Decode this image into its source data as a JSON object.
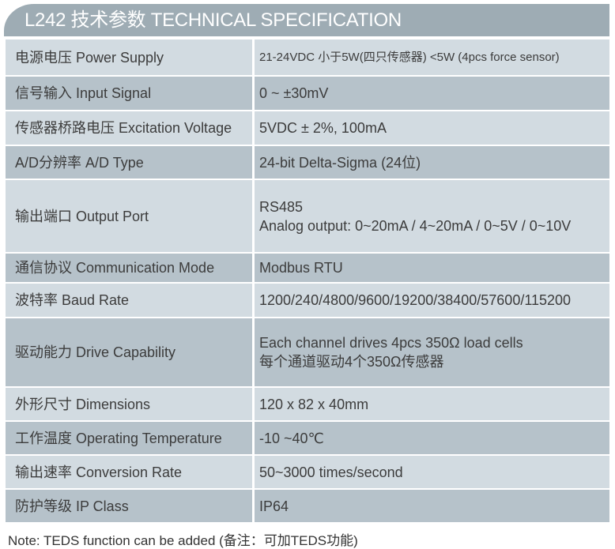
{
  "title": "L242 技术参数 TECHNICAL SPECIFICATION",
  "colors": {
    "header": "#9eacb4",
    "row_light": "#d2dbe1",
    "row_dark": "#b6c2ca"
  },
  "rows": [
    {
      "label": "电源电压 Power Supply",
      "value": [
        "21-24VDC  小于5W(四只传感器) <5W (4pcs force sensor)"
      ]
    },
    {
      "label": "信号输入 Input Signal",
      "value": [
        "0 ~ ±30mV"
      ]
    },
    {
      "label": "传感器桥路电压 Excitation Voltage",
      "value": [
        "5VDC ± 2%, 100mA"
      ]
    },
    {
      "label": "A/D分辨率 A/D Type",
      "value": [
        "24-bit Delta-Sigma (24位)"
      ]
    },
    {
      "label": "输出端口 Output Port",
      "value": [
        "RS485",
        "Analog output: 0~20mA / 4~20mA / 0~5V / 0~10V"
      ]
    },
    {
      "label": "通信协议 Communication Mode",
      "value": [
        "Modbus RTU"
      ]
    },
    {
      "label": "波特率 Baud Rate",
      "value": [
        "1200/240/4800/9600/19200/38400/57600/115200"
      ]
    },
    {
      "label": "驱动能力 Drive Capability",
      "value": [
        "Each channel drives 4pcs 350Ω load cells",
        "每个通道驱动4个350Ω传感器"
      ]
    },
    {
      "label": "外形尺寸 Dimensions",
      "value": [
        "120 x 82 x 40mm"
      ]
    },
    {
      "label": "工作温度 Operating Temperature",
      "value": [
        "-10 ~40℃"
      ]
    },
    {
      "label": "输出速率 Conversion Rate",
      "value": [
        "50~3000 times/second"
      ]
    },
    {
      "label": "防护等级 IP Class",
      "value": [
        "IP64"
      ]
    }
  ],
  "note": "Note: TEDS function can be added (备注：可加TEDS功能)"
}
